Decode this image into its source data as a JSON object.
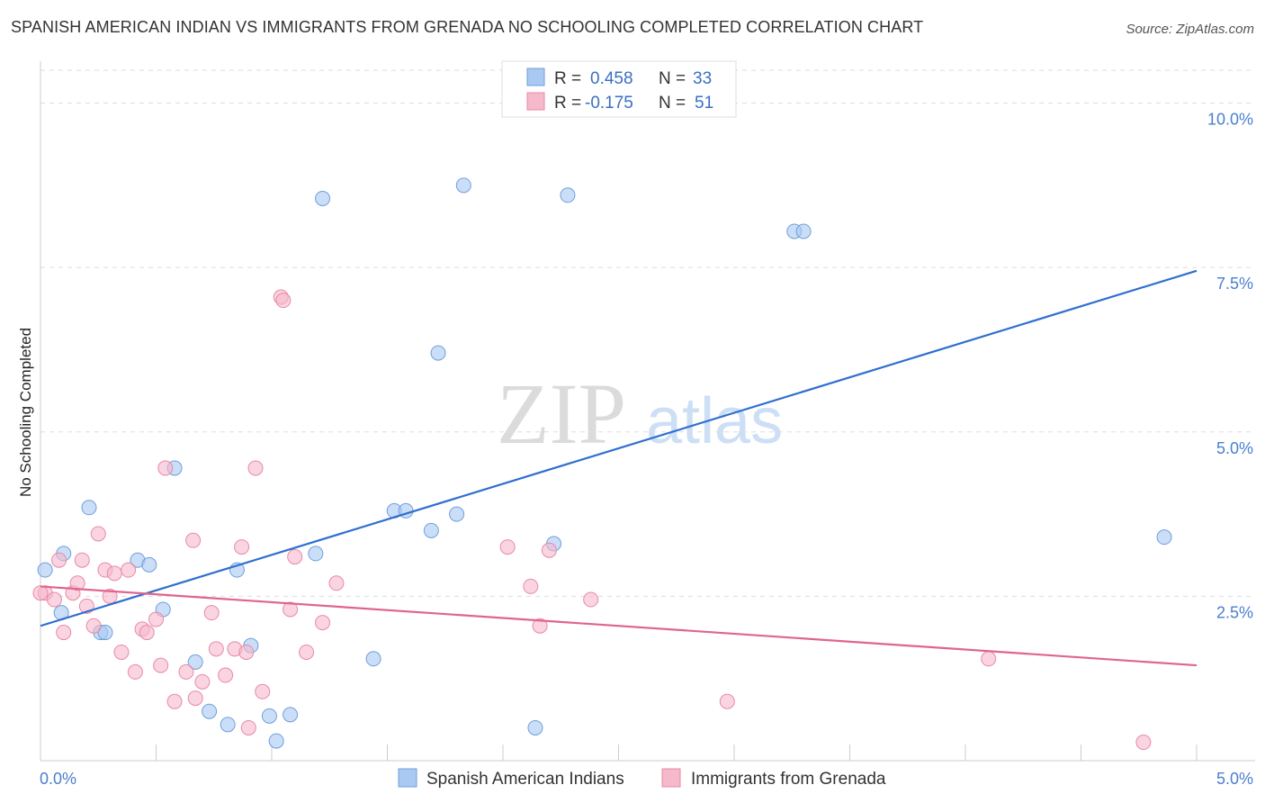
{
  "header": {
    "title": "SPANISH AMERICAN INDIAN VS IMMIGRANTS FROM GRENADA NO SCHOOLING COMPLETED CORRELATION CHART",
    "source": "Source: ZipAtlas.com"
  },
  "watermark": {
    "part1": "ZIP",
    "part2": "atlas"
  },
  "legend_top": {
    "rows": [
      {
        "r_label": "R =",
        "r_value": "0.458",
        "n_label": "N =",
        "n_value": "33",
        "color": "#a9c8f2"
      },
      {
        "r_label": "R =",
        "r_value": "-0.175",
        "n_label": "N =",
        "n_value": "51",
        "color": "#f6b8cb"
      }
    ]
  },
  "chart_data": {
    "type": "scatter",
    "title": "SPANISH AMERICAN INDIAN VS IMMIGRANTS FROM GRENADA NO SCHOOLING COMPLETED CORRELATION CHART",
    "xlabel": "",
    "ylabel": "No Schooling Completed",
    "xlim": [
      0,
      5
    ],
    "ylim": [
      0,
      10.5
    ],
    "x_tick_labels": [
      {
        "value": 0,
        "label": "0.0%"
      },
      {
        "value": 5,
        "label": "5.0%"
      }
    ],
    "y_tick_labels": [
      {
        "value": 2.5,
        "label": "2.5%"
      },
      {
        "value": 5,
        "label": "5.0%"
      },
      {
        "value": 7.5,
        "label": "7.5%"
      },
      {
        "value": 10,
        "label": "10.0%"
      }
    ],
    "grid": "horizontal-dashed",
    "series": [
      {
        "name": "Spanish American Indians",
        "color": "#a9c8f2",
        "edge": "#6f9fdc",
        "line_color": "#2f6fcf",
        "trend": {
          "x0": 0,
          "y0": 2.05,
          "x1": 5,
          "y1": 7.45
        },
        "points": [
          [
            0.02,
            2.9
          ],
          [
            0.09,
            2.25
          ],
          [
            0.21,
            3.85
          ],
          [
            0.26,
            1.95
          ],
          [
            0.28,
            1.95
          ],
          [
            0.42,
            3.05
          ],
          [
            0.47,
            2.98
          ],
          [
            0.53,
            2.3
          ],
          [
            0.58,
            4.45
          ],
          [
            0.67,
            1.5
          ],
          [
            0.73,
            0.75
          ],
          [
            0.81,
            0.55
          ],
          [
            0.85,
            2.9
          ],
          [
            0.91,
            1.75
          ],
          [
            0.99,
            0.68
          ],
          [
            1.02,
            0.3
          ],
          [
            1.08,
            0.7
          ],
          [
            1.19,
            3.15
          ],
          [
            1.22,
            8.55
          ],
          [
            1.44,
            1.55
          ],
          [
            1.53,
            3.8
          ],
          [
            1.58,
            3.8
          ],
          [
            1.69,
            3.5
          ],
          [
            1.72,
            6.2
          ],
          [
            1.8,
            3.75
          ],
          [
            1.83,
            8.75
          ],
          [
            2.14,
            0.5
          ],
          [
            2.22,
            3.3
          ],
          [
            2.28,
            8.6
          ],
          [
            3.26,
            8.05
          ],
          [
            3.3,
            8.05
          ],
          [
            4.86,
            3.4
          ],
          [
            0.1,
            3.15
          ]
        ]
      },
      {
        "name": "Immigrants from Grenada",
        "color": "#f6b8cb",
        "edge": "#e88aa6",
        "line_color": "#e0658e",
        "trend": {
          "x0": 0,
          "y0": 2.65,
          "x1": 5,
          "y1": 1.45
        },
        "points": [
          [
            0.02,
            2.55
          ],
          [
            0.06,
            2.45
          ],
          [
            0.08,
            3.05
          ],
          [
            0.1,
            1.95
          ],
          [
            0.14,
            2.55
          ],
          [
            0.16,
            2.7
          ],
          [
            0.18,
            3.05
          ],
          [
            0.2,
            2.35
          ],
          [
            0.23,
            2.05
          ],
          [
            0.25,
            3.45
          ],
          [
            0.28,
            2.9
          ],
          [
            0.3,
            2.5
          ],
          [
            0.32,
            2.85
          ],
          [
            0.35,
            1.65
          ],
          [
            0.38,
            2.9
          ],
          [
            0.41,
            1.35
          ],
          [
            0.44,
            2.0
          ],
          [
            0.46,
            1.95
          ],
          [
            0.5,
            2.15
          ],
          [
            0.52,
            1.45
          ],
          [
            0.54,
            4.45
          ],
          [
            0.58,
            0.9
          ],
          [
            0.63,
            1.35
          ],
          [
            0.66,
            3.35
          ],
          [
            0.67,
            0.95
          ],
          [
            0.7,
            1.2
          ],
          [
            0.74,
            2.25
          ],
          [
            0.76,
            1.7
          ],
          [
            0.8,
            1.3
          ],
          [
            0.84,
            1.7
          ],
          [
            0.87,
            3.25
          ],
          [
            0.89,
            1.65
          ],
          [
            0.9,
            0.5
          ],
          [
            0.93,
            4.45
          ],
          [
            0.96,
            1.05
          ],
          [
            1.04,
            7.05
          ],
          [
            1.05,
            7.0
          ],
          [
            1.08,
            2.3
          ],
          [
            1.1,
            3.1
          ],
          [
            1.15,
            1.65
          ],
          [
            1.22,
            2.1
          ],
          [
            1.28,
            2.7
          ],
          [
            2.02,
            3.25
          ],
          [
            2.12,
            2.65
          ],
          [
            2.16,
            2.05
          ],
          [
            2.2,
            3.2
          ],
          [
            2.38,
            2.45
          ],
          [
            2.97,
            0.9
          ],
          [
            4.1,
            1.55
          ],
          [
            4.77,
            0.28
          ],
          [
            0.0,
            2.55
          ]
        ]
      }
    ]
  },
  "legend_bottom": {
    "items": [
      {
        "label": "Spanish American Indians",
        "color": "#a9c8f2"
      },
      {
        "label": "Immigrants from Grenada",
        "color": "#f6b8cb"
      }
    ]
  }
}
